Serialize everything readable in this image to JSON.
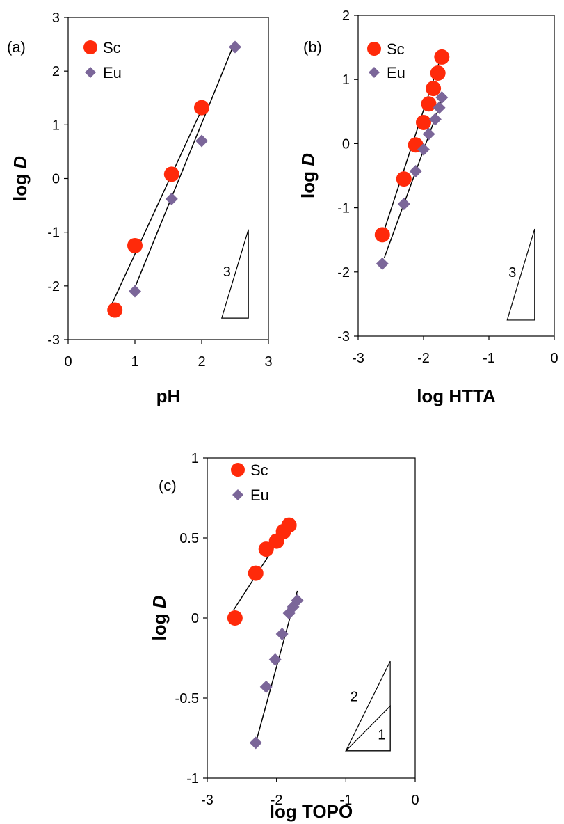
{
  "colors": {
    "sc": "#ff2a0a",
    "eu": "#7b6699",
    "line": "#000000"
  },
  "chart_data": [
    {
      "type": "scatter",
      "panel_label": "(a)",
      "xlabel": "pH",
      "ylabel_main": "log ",
      "ylabel_italic": "D",
      "xlim": [
        0,
        3
      ],
      "ylim": [
        -3,
        3
      ],
      "xticks": [
        "0",
        "1",
        "2",
        "3"
      ],
      "yticks": [
        "-3",
        "-2",
        "-1",
        "0",
        "1",
        "2",
        "3"
      ],
      "series": [
        {
          "name": "Sc",
          "marker": "circle",
          "x": [
            0.7,
            1.0,
            1.55,
            2.0
          ],
          "y": [
            -2.45,
            -1.25,
            0.08,
            1.32
          ],
          "fit": [
            [
              0.65,
              -2.35
            ],
            [
              2.05,
              1.42
            ]
          ]
        },
        {
          "name": "Eu",
          "marker": "diamond",
          "x": [
            1.0,
            1.55,
            2.0,
            2.5
          ],
          "y": [
            -2.1,
            -0.38,
            0.7,
            2.45
          ],
          "fit": [
            [
              0.97,
              -2.12
            ],
            [
              2.45,
              2.4
            ]
          ]
        }
      ],
      "slope_triangles": [
        {
          "label": "3",
          "x0": 2.3,
          "x1": 2.7,
          "y_low": -2.6,
          "y_high": -0.95
        }
      ]
    },
    {
      "type": "scatter",
      "panel_label": "(b)",
      "xlabel": "log HTTA",
      "ylabel_main": "log ",
      "ylabel_italic": "D",
      "xlim": [
        -3,
        0
      ],
      "ylim": [
        -3,
        2
      ],
      "xticks": [
        "-3",
        "-2",
        "-1",
        "0"
      ],
      "yticks": [
        "-3",
        "-2",
        "-1",
        "0",
        "1",
        "2"
      ],
      "series": [
        {
          "name": "Sc",
          "marker": "circle",
          "x": [
            -2.63,
            -2.3,
            -2.12,
            -2.0,
            -1.92,
            -1.85,
            -1.78,
            -1.72
          ],
          "y": [
            -1.42,
            -0.55,
            -0.02,
            0.33,
            0.62,
            0.86,
            1.1,
            1.35
          ],
          "fit": [
            [
              -2.65,
              -1.5
            ],
            [
              -1.75,
              1.3
            ]
          ]
        },
        {
          "name": "Eu",
          "marker": "diamond",
          "x": [
            -2.63,
            -2.3,
            -2.12,
            -2.0,
            -1.92,
            -1.82,
            -1.76,
            -1.72
          ],
          "y": [
            -1.87,
            -0.94,
            -0.43,
            -0.09,
            0.15,
            0.38,
            0.56,
            0.72
          ],
          "fit": [
            [
              -2.6,
              -1.78
            ],
            [
              -1.7,
              0.74
            ]
          ]
        }
      ],
      "slope_triangles": [
        {
          "label": "3",
          "x0": -0.72,
          "x1": -0.3,
          "y_low": -2.75,
          "y_high": -1.33
        }
      ]
    },
    {
      "type": "scatter",
      "panel_label": "(c)",
      "xlabel": "log TOPO",
      "ylabel_main": "log ",
      "ylabel_italic": "D",
      "xlim": [
        -3,
        0
      ],
      "ylim": [
        -1,
        1
      ],
      "xticks": [
        "-3",
        "-2",
        "-1",
        "0"
      ],
      "yticks": [
        "-1",
        "-0.5",
        "0",
        "0.5",
        "1"
      ],
      "series": [
        {
          "name": "Sc",
          "marker": "circle",
          "x": [
            -2.6,
            -2.3,
            -2.15,
            -2.0,
            -1.9,
            -1.82
          ],
          "y": [
            0.0,
            0.28,
            0.43,
            0.48,
            0.54,
            0.58
          ],
          "fit": [
            [
              -2.62,
              0.05
            ],
            [
              -1.8,
              0.6
            ]
          ]
        },
        {
          "name": "Eu",
          "marker": "diamond",
          "x": [
            -2.3,
            -2.15,
            -2.02,
            -1.92,
            -1.82,
            -1.76,
            -1.7
          ],
          "y": [
            -0.78,
            -0.43,
            -0.26,
            -0.1,
            0.03,
            0.07,
            0.11
          ],
          "fit": [
            [
              -2.3,
              -0.78
            ],
            [
              -1.7,
              0.17
            ]
          ]
        }
      ],
      "slope_triangles": [
        {
          "label": "2",
          "x0": -1.0,
          "x1": -0.36,
          "y_low": -0.83,
          "y_high": -0.27
        },
        {
          "label": "1",
          "x0": -1.0,
          "x1": -0.36,
          "y_low": -0.83,
          "y_high": -0.55
        }
      ]
    }
  ]
}
